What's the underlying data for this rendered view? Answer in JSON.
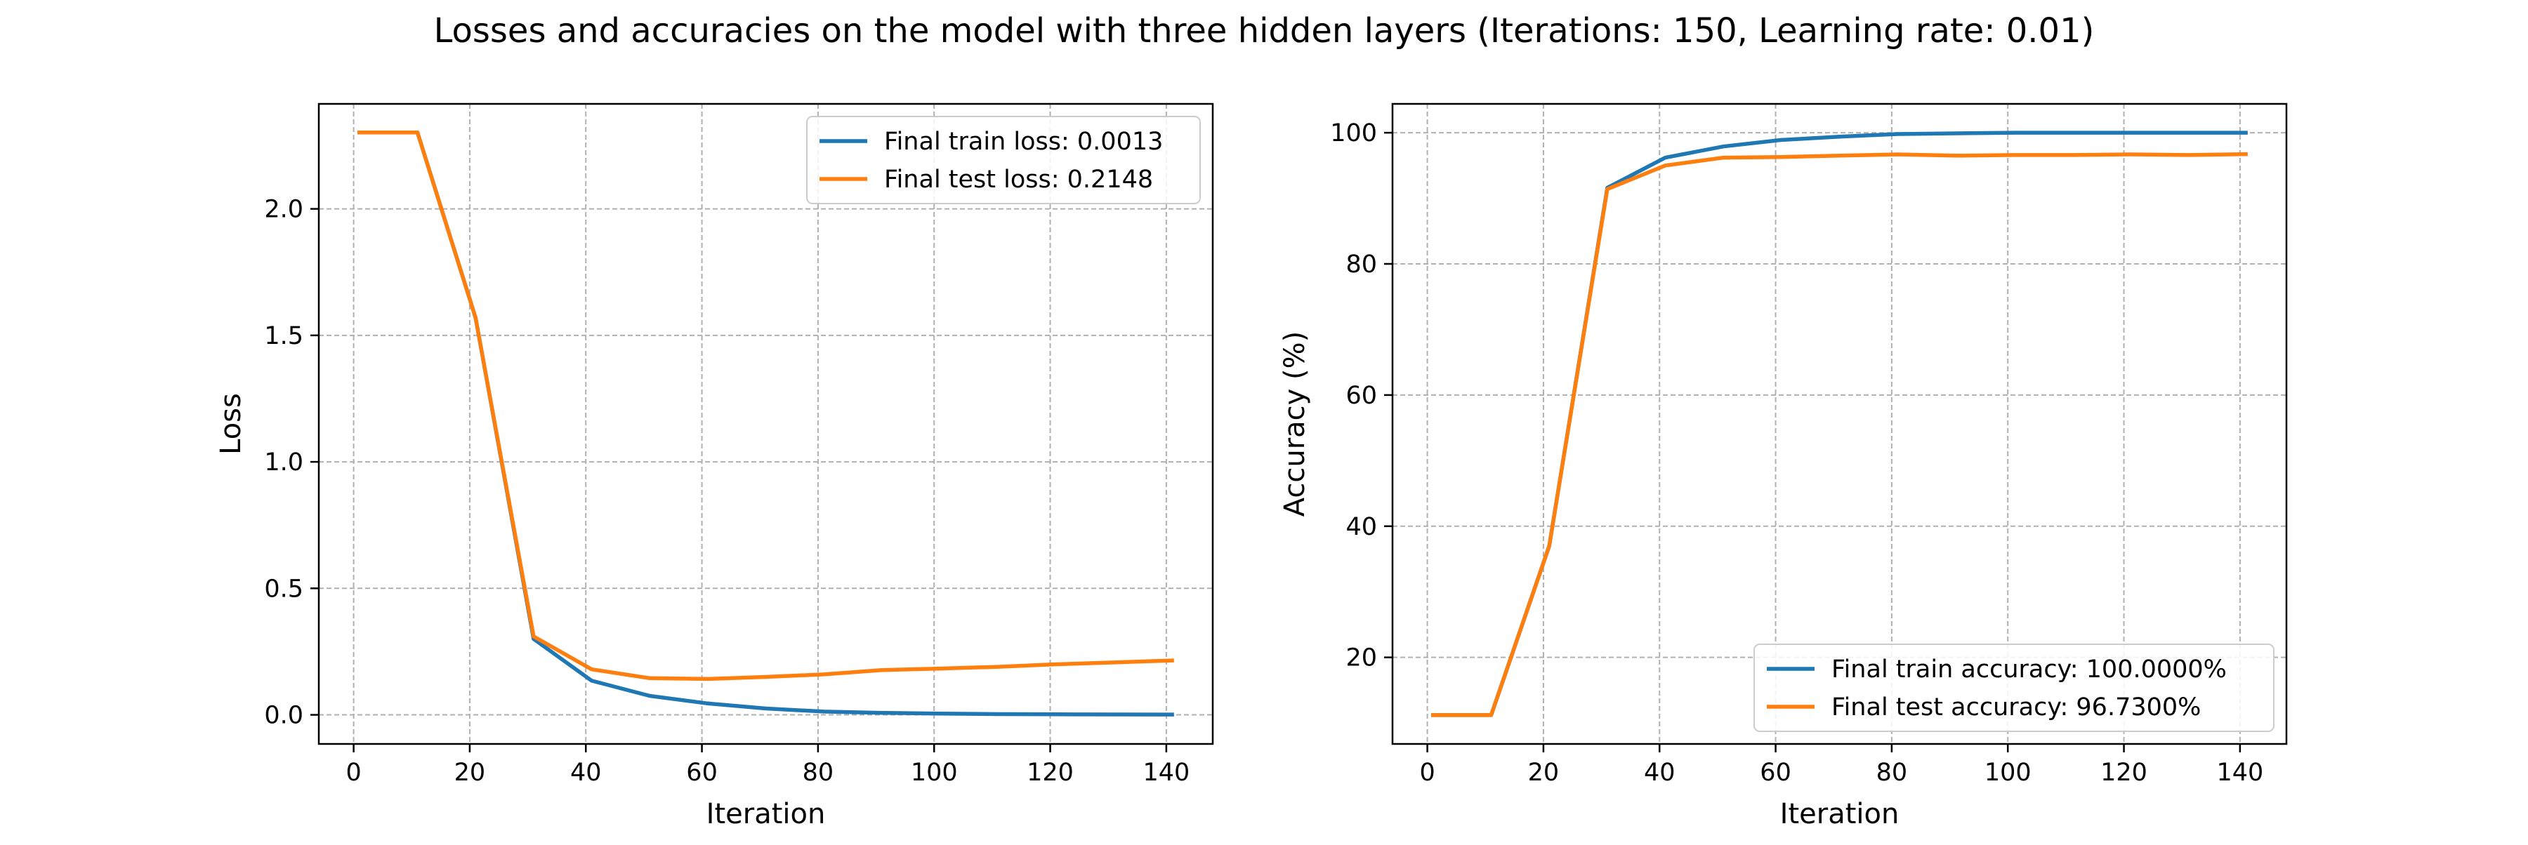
{
  "figure": {
    "suptitle": "Losses and accuracies on the model with three hidden layers (Iterations: 150, Learning rate: 0.01)"
  },
  "colors": {
    "train": "#1f77b4",
    "test": "#ff7f0e",
    "grid": "#b0b0b0",
    "axes": "#000000"
  },
  "chart_data": [
    {
      "type": "line",
      "xlabel": "Iteration",
      "ylabel": "Loss",
      "xlim": [
        -6,
        148
      ],
      "ylim": [
        -0.115,
        2.415
      ],
      "xticks": [
        0,
        20,
        40,
        60,
        80,
        100,
        120,
        140
      ],
      "yticks": [
        0.0,
        0.5,
        1.0,
        1.5,
        2.0
      ],
      "ytick_decimals": 1,
      "grid": true,
      "legend_position": "upper-right",
      "x": [
        1,
        11,
        21,
        31,
        41,
        51,
        61,
        71,
        81,
        91,
        101,
        111,
        121,
        131,
        141
      ],
      "series": [
        {
          "name": "Final train loss: 0.0013",
          "role": "train",
          "values": [
            2.302,
            2.302,
            1.57,
            0.3,
            0.135,
            0.075,
            0.045,
            0.025,
            0.013,
            0.008,
            0.005,
            0.003,
            0.002,
            0.0015,
            0.0013
          ]
        },
        {
          "name": "Final test loss: 0.2148",
          "role": "test",
          "values": [
            2.302,
            2.302,
            1.57,
            0.31,
            0.18,
            0.145,
            0.142,
            0.15,
            0.16,
            0.177,
            0.183,
            0.19,
            0.2,
            0.207,
            0.2148
          ]
        }
      ]
    },
    {
      "type": "line",
      "xlabel": "Iteration",
      "ylabel": "Accuracy (%)",
      "xlim": [
        -6,
        148
      ],
      "ylim": [
        6.8,
        104.4
      ],
      "xticks": [
        0,
        20,
        40,
        60,
        80,
        100,
        120,
        140
      ],
      "yticks": [
        20,
        40,
        60,
        80,
        100
      ],
      "ytick_decimals": 0,
      "grid": true,
      "legend_position": "lower-right",
      "x": [
        1,
        11,
        21,
        31,
        41,
        51,
        61,
        71,
        81,
        91,
        101,
        111,
        121,
        131,
        141
      ],
      "series": [
        {
          "name": "Final train accuracy: 100.0000%",
          "role": "train",
          "values": [
            11.2,
            11.2,
            37.0,
            91.6,
            96.2,
            97.9,
            98.9,
            99.4,
            99.8,
            99.9,
            100.0,
            100.0,
            100.0,
            100.0,
            100.0
          ]
        },
        {
          "name": "Final test accuracy: 96.7300%",
          "role": "test",
          "values": [
            11.2,
            11.2,
            37.0,
            91.4,
            95.0,
            96.2,
            96.3,
            96.5,
            96.7,
            96.5,
            96.6,
            96.6,
            96.7,
            96.6,
            96.73
          ]
        }
      ]
    }
  ]
}
